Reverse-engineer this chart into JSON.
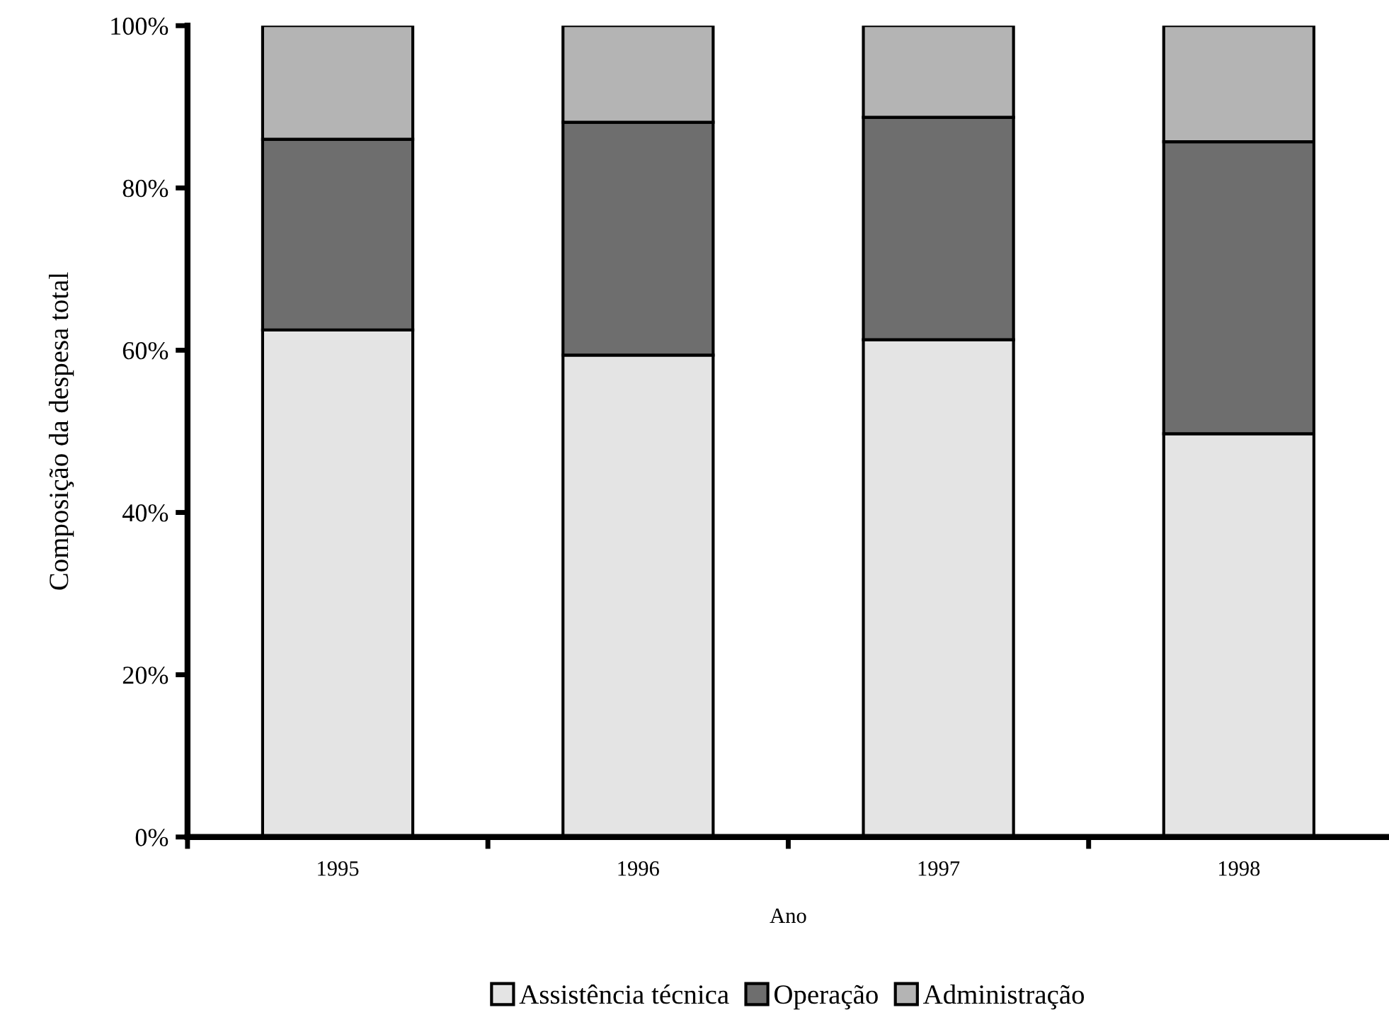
{
  "chart_data": {
    "type": "bar",
    "stacked": true,
    "xlabel": "Ano",
    "ylabel": "Composição da despesa total",
    "categories": [
      "1995",
      "1996",
      "1997",
      "1998"
    ],
    "series": [
      {
        "name": "Assistência técnica",
        "color": "#e4e4e4",
        "values": [
          62.5,
          59.4,
          61.3,
          49.7
        ]
      },
      {
        "name": "Operação",
        "color": "#6e6e6e",
        "values": [
          23.5,
          28.7,
          27.4,
          36.0
        ]
      },
      {
        "name": "Administração",
        "color": "#b4b4b4",
        "values": [
          14.0,
          11.9,
          11.3,
          14.3
        ]
      }
    ],
    "ylim": [
      0,
      100
    ],
    "yticks": [
      {
        "value": 0,
        "label": "0%"
      },
      {
        "value": 20,
        "label": "20%"
      },
      {
        "value": 40,
        "label": "40%"
      },
      {
        "value": 60,
        "label": "60%"
      },
      {
        "value": 80,
        "label": "80%"
      },
      {
        "value": 100,
        "label": "100%"
      }
    ],
    "grid": false,
    "legend": "bottom"
  }
}
